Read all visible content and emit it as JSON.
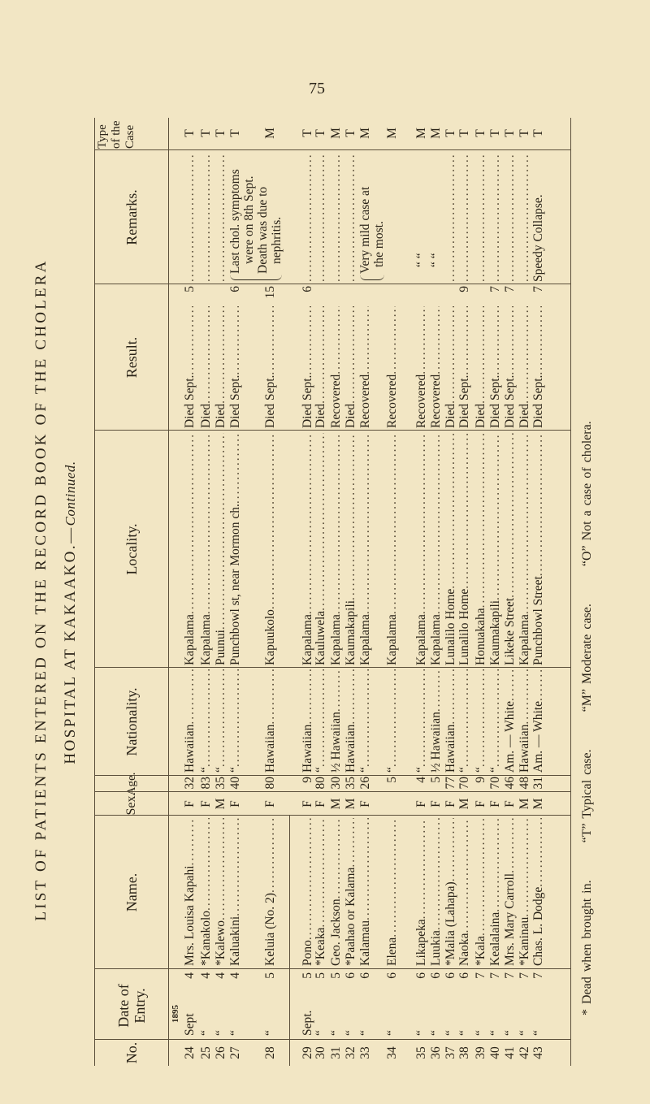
{
  "page_number": "75",
  "title": {
    "line1": "LIST OF PATIENTS ENTERED ON THE RECORD BOOK OF THE CHOLERA",
    "line2": "HOSPITAL AT KAKAAKO.—",
    "line2_italic": "Continued."
  },
  "headers": {
    "no": "No.",
    "date": "Date of Entry.",
    "name": "Name.",
    "sex": "Sex.",
    "age": "Age.",
    "nationality": "Nationality.",
    "locality": "Locality.",
    "result": "Result.",
    "remarks": "Remarks.",
    "type": "Type of the Case"
  },
  "year": "1895",
  "rows": [
    {
      "no": "24",
      "month": "Sept",
      "day": "4",
      "name": "Mrs. Louisa Kapahi",
      "sex": "F",
      "age": "32",
      "nationality": "Hawaiian",
      "locality": "Kapalama",
      "result": "Died Sept.",
      "result_day": "5",
      "type": "T"
    },
    {
      "no": "25",
      "month": "“",
      "day": "4",
      "name": "*Kanakolo",
      "sex": "F",
      "age": "83",
      "nationality": "“",
      "locality": "Kapalama",
      "result": "Died",
      "result_day": "",
      "type": "T"
    },
    {
      "no": "26",
      "month": "“",
      "day": "4",
      "name": "*Kalewo",
      "sex": "M",
      "age": "35",
      "nationality": "“",
      "locality": "Puunui",
      "result": "Died",
      "result_day": "",
      "type": "T"
    },
    {
      "no": "27",
      "month": "“",
      "day": "4",
      "name": "Kaluakini",
      "sex": "F",
      "age": "40",
      "nationality": "“",
      "locality": "Punchbowl st, near Mormon ch.",
      "result": "Died Sept.",
      "result_day": "6",
      "type": "T"
    },
    {
      "no": "28",
      "month": "“",
      "day": "5",
      "name": "Keluia (No. 2)",
      "sex": "F",
      "age": "80",
      "nationality": "Hawaiian",
      "locality": "Kapuukolo",
      "result": "Died Sept.",
      "result_day": "15",
      "type": "M"
    },
    {
      "no": "29",
      "month": "Sept.",
      "day": "5",
      "name": "Pono",
      "sex": "F",
      "age": "9",
      "nationality": "Hawaiian",
      "locality": "Kapalama",
      "result": "Died Sept.",
      "result_day": "6",
      "type": "T"
    },
    {
      "no": "30",
      "month": "“",
      "day": "5",
      "name": "*Keaka",
      "sex": "F",
      "age": "80",
      "nationality": "“",
      "locality": "Kauluwela",
      "result": "Died",
      "result_day": "",
      "type": "T"
    },
    {
      "no": "31",
      "month": "“",
      "day": "5",
      "name": "Geo. Jackson",
      "sex": "M",
      "age": "30",
      "nationality": "½ Hawaiian",
      "locality": "Kapalama",
      "result": "Recovered",
      "result_day": "",
      "type": "M"
    },
    {
      "no": "32",
      "month": "“",
      "day": "6",
      "name": "*Paahao or Kalama",
      "sex": "M",
      "age": "35",
      "nationality": "Hawaiian",
      "locality": "Kaumakapili",
      "result": "Died",
      "result_day": "",
      "type": "T"
    },
    {
      "no": "33",
      "month": "“",
      "day": "6",
      "name": "Kalamau",
      "sex": "F",
      "age": "26",
      "nationality": "“",
      "locality": "Kapalama",
      "result": "Recovered",
      "result_day": "",
      "type": "M"
    },
    {
      "no": "34",
      "month": "“",
      "day": "6",
      "name": "Elena",
      "sex": "",
      "age": "5",
      "nationality": "“",
      "locality": "Kapalama",
      "result": "Recovered",
      "result_day": "",
      "type": "M"
    },
    {
      "no": "35",
      "month": "“",
      "day": "6",
      "name": "Likapeka",
      "sex": "F",
      "age": "4",
      "nationality": "“",
      "locality": "Kapalama",
      "result": "Recovered",
      "result_day": "",
      "type": "M"
    },
    {
      "no": "36",
      "month": "“",
      "day": "6",
      "name": "Luukia",
      "sex": "F",
      "age": "5",
      "nationality": "½ Hawaiian",
      "locality": "Kapalama",
      "result": "Recovered",
      "result_day": "",
      "type": "M"
    },
    {
      "no": "37",
      "month": "“",
      "day": "6",
      "name": "*Malia (Lahapa)",
      "sex": "F",
      "age": "77",
      "nationality": "Hawaiian",
      "locality": "Lunalilo Home",
      "result": "Died",
      "result_day": "",
      "type": "T"
    },
    {
      "no": "38",
      "month": "“",
      "day": "6",
      "name": "Naoka",
      "sex": "M",
      "age": "70",
      "nationality": "“",
      "locality": "Lunalilo Home",
      "result": "Died Sept.",
      "result_day": "9",
      "type": "T"
    },
    {
      "no": "39",
      "month": "“",
      "day": "7",
      "name": "*Kala",
      "sex": "F",
      "age": "9",
      "nationality": "“",
      "locality": "Honuakaha",
      "result": "Died",
      "result_day": "",
      "type": "T"
    },
    {
      "no": "40",
      "month": "“",
      "day": "7",
      "name": "Kealalaina",
      "sex": "F",
      "age": "70",
      "nationality": "“",
      "locality": "Kaumakapili",
      "result": "Died Sept.",
      "result_day": "7",
      "type": "T"
    },
    {
      "no": "41",
      "month": "“",
      "day": "7",
      "name": "Mrs. Mary Carroll",
      "sex": "F",
      "age": "46",
      "nationality": "Am. — White",
      "locality": "Likeke Street",
      "result": "Died Sept.",
      "result_day": "7",
      "type": "T"
    },
    {
      "no": "42",
      "month": "“",
      "day": "7",
      "name": "*Kaninau",
      "sex": "M",
      "age": "48",
      "nationality": "Hawaiian",
      "locality": "Kapalama",
      "result": "Died",
      "result_day": "",
      "type": "T"
    },
    {
      "no": "43",
      "month": "“",
      "day": "7",
      "name": "Chas. L. Dodge",
      "sex": "M",
      "age": "31",
      "nationality": "Am. — White",
      "locality": "Punchbowl Street",
      "result": "Died Sept.",
      "result_day": "7",
      "type": "T"
    }
  ],
  "remarks": [
    {
      "for_no": "27",
      "lines": [
        "Last chol. symptoms",
        "were on 8th Sept.",
        "Death was due to",
        "nephritis."
      ]
    },
    {
      "for_no": "33",
      "lines": [
        "Very mild case at",
        "the most."
      ]
    },
    {
      "for_no": "35",
      "lines": [
        "“          “"
      ]
    },
    {
      "for_no": "36",
      "lines": [
        "“          “"
      ]
    },
    {
      "for_no": "43",
      "lines": [
        "Speedy Collapse."
      ]
    }
  ],
  "footer": {
    "dead": "* Dead when brought in.",
    "typical": "“T” Typical case.",
    "moderate": "“M” Moderate case.",
    "not_cholera": "“O” Not a case of cholera."
  },
  "colors": {
    "paper": "#f2e6c4",
    "ink": "#2b2419"
  }
}
